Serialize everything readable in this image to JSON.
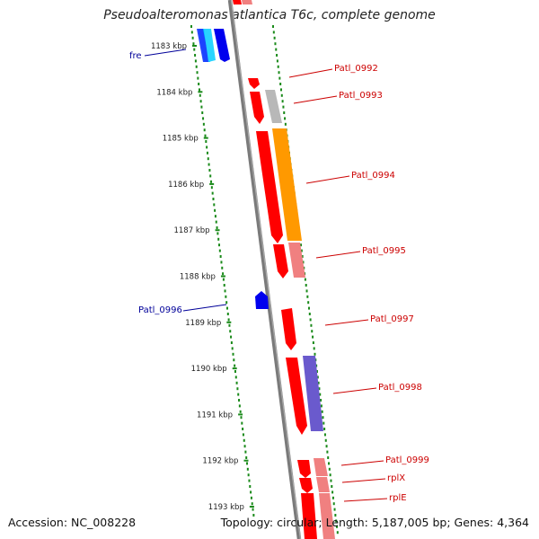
{
  "title": "Pseudoalteromonas atlantica T6c, complete genome",
  "footer": {
    "accession": "Accession: NC_008228",
    "summary": "Topology: circular; Length: 5,187,005 bp; Genes: 4,364"
  },
  "colors": {
    "backbone": "#7a7a7a",
    "gc_skew_dots": "#1a8a1a",
    "red": "#ff0000",
    "pink": "#f08080",
    "orange": "#ff9900",
    "gray_feature": "#b8b8b8",
    "purple": "#6a5acd",
    "blue": "#0000ee",
    "cyan": "#00c8ff",
    "label_red": "#cc0000",
    "label_blue": "#000099"
  },
  "ticks": [
    "1183 kbp",
    "1184 kbp",
    "1185 kbp",
    "1186 kbp",
    "1187 kbp",
    "1188 kbp",
    "1189 kbp",
    "1190 kbp",
    "1191 kbp",
    "1192 kbp",
    "1193 kbp"
  ],
  "gene_labels": [
    {
      "text": "fre",
      "side": "left",
      "color": "blue"
    },
    {
      "text": "Patl_0992",
      "side": "right",
      "color": "red"
    },
    {
      "text": "Patl_0993",
      "side": "right",
      "color": "red"
    },
    {
      "text": "Patl_0994",
      "side": "right",
      "color": "red"
    },
    {
      "text": "Patl_0995",
      "side": "right",
      "color": "red"
    },
    {
      "text": "Patl_0996",
      "side": "left",
      "color": "blue"
    },
    {
      "text": "Patl_0997",
      "side": "right",
      "color": "red"
    },
    {
      "text": "Patl_0998",
      "side": "right",
      "color": "red"
    },
    {
      "text": "Patl_0999",
      "side": "right",
      "color": "red"
    },
    {
      "text": "rplX",
      "side": "right",
      "color": "red"
    },
    {
      "text": "rplE",
      "side": "right",
      "color": "red"
    }
  ]
}
